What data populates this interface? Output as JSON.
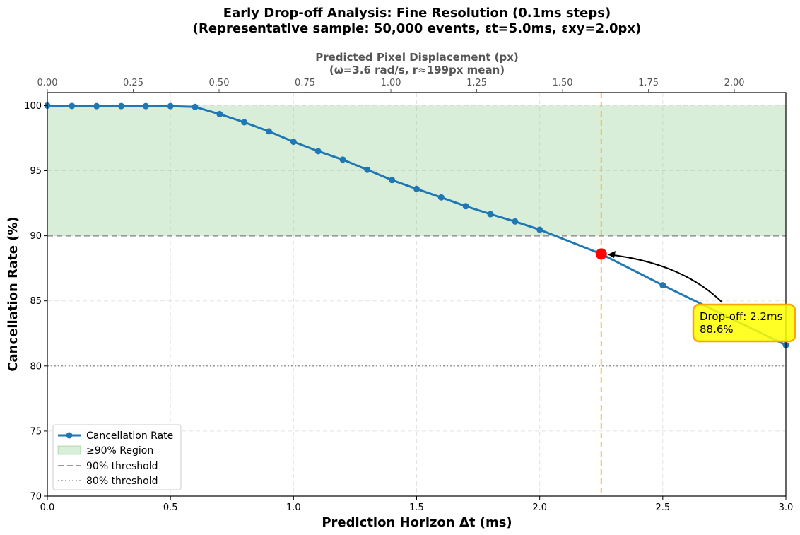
{
  "chart_data": {
    "type": "line",
    "title_line1": "Early Drop-off Analysis: Fine Resolution (0.1ms steps)",
    "title_line2": "(Representative sample: 50,000 events, εt=5.0ms, εxy=2.0px)",
    "xlabel": "Prediction Horizon Δt (ms)",
    "ylabel": "Cancellation Rate (%)",
    "top_xlabel_line1": "Predicted Pixel Displacement (px)",
    "top_xlabel_line2": "(ω=3.6 rad/s, r≈199px mean)",
    "xlim": [
      0,
      3.0
    ],
    "ylim": [
      70,
      101
    ],
    "top_xlim": [
      0,
      2.15
    ],
    "x_ticks": [
      "0.0",
      "0.5",
      "1.0",
      "1.5",
      "2.0",
      "2.5",
      "3.0"
    ],
    "y_ticks": [
      "70",
      "75",
      "80",
      "85",
      "90",
      "95",
      "100"
    ],
    "top_ticks": [
      "0.00",
      "0.25",
      "0.50",
      "0.75",
      "1.00",
      "1.25",
      "1.50",
      "1.75",
      "2.00"
    ],
    "grid": true,
    "series": [
      {
        "name": "Cancellation Rate",
        "color": "#1f77b4",
        "x": [
          0.0,
          0.1,
          0.2,
          0.3,
          0.4,
          0.5,
          0.6,
          0.7,
          0.8,
          0.9,
          1.0,
          1.1,
          1.2,
          1.3,
          1.4,
          1.5,
          1.6,
          1.7,
          1.8,
          1.9,
          2.0,
          2.25,
          2.5,
          3.0
        ],
        "y": [
          100.0,
          99.97,
          99.96,
          99.96,
          99.96,
          99.96,
          99.9,
          99.35,
          98.72,
          98.02,
          97.22,
          96.5,
          95.85,
          95.07,
          94.28,
          93.6,
          92.95,
          92.27,
          91.66,
          91.1,
          90.47,
          88.6,
          86.2,
          81.6
        ]
      }
    ],
    "region": {
      "label": "≥90% Region",
      "y_from": 90,
      "y_to": 100,
      "color": "#2ca02c"
    },
    "thresholds": [
      {
        "label": "90% threshold",
        "y": 90,
        "color": "#999999",
        "style": "dashed"
      },
      {
        "label": "80% threshold",
        "y": 80,
        "color": "#999999",
        "style": "dotted"
      }
    ],
    "dropoff": {
      "x": 2.25,
      "y": 88.6,
      "color": "#ff0000",
      "vline_color": "#ffa500",
      "label_line1": "Drop-off: 2.2ms",
      "label_line2": "88.6%",
      "box_color": "#ffff00",
      "box_border": "#ffa500"
    },
    "legend_position": "lower-left"
  }
}
